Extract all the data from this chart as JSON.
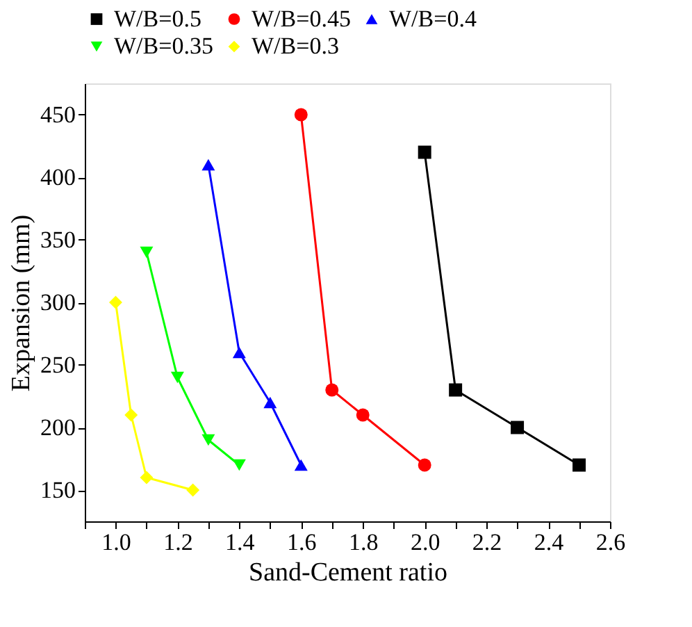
{
  "chart_data": {
    "type": "line",
    "xlabel": "Sand-Cement ratio",
    "ylabel": "Expansion (mm)",
    "xlim": [
      0.9,
      2.6
    ],
    "ylim": [
      125,
      475
    ],
    "xticks": [
      {
        "value": 0.9,
        "label": null
      },
      {
        "value": 1.0,
        "label": "1.0"
      },
      {
        "value": 1.1,
        "label": null
      },
      1.2,
      {
        "value": 1.3,
        "label": null
      },
      1.4,
      {
        "value": 1.5,
        "label": null
      },
      1.6,
      {
        "value": 1.7,
        "label": null
      },
      1.8,
      {
        "value": 1.9,
        "label": null
      },
      {
        "value": 2.0,
        "label": "2.0"
      },
      {
        "value": 2.1,
        "label": null
      },
      2.2,
      {
        "value": 2.3,
        "label": null
      },
      2.4,
      {
        "value": 2.5,
        "label": null
      },
      2.6
    ],
    "yticks": [
      150,
      200,
      250,
      300,
      350,
      400,
      450
    ],
    "grid": false,
    "legend": "top",
    "line_style": "solid",
    "series": [
      {
        "name": "W/B=0.5",
        "color": "#000000",
        "marker": "square",
        "x": [
          2.0,
          2.1,
          2.3,
          2.5
        ],
        "values": [
          420,
          230,
          200,
          170
        ]
      },
      {
        "name": "W/B=0.45",
        "color": "#ff0000",
        "marker": "circle",
        "x": [
          1.6,
          1.7,
          1.8,
          2.0
        ],
        "values": [
          450,
          230,
          210,
          170
        ]
      },
      {
        "name": "W/B=0.4",
        "color": "#0000ff",
        "marker": "triangle",
        "x": [
          1.3,
          1.4,
          1.5,
          1.6
        ],
        "values": [
          410,
          260,
          220,
          170
        ]
      },
      {
        "name": "W/B=0.35",
        "color": "#00ff00",
        "marker": "triangle-down",
        "x": [
          1.1,
          1.2,
          1.3,
          1.4
        ],
        "values": [
          340,
          240,
          190,
          170
        ]
      },
      {
        "name": "W/B=0.3",
        "color": "#ffff00",
        "marker": "diamond",
        "x": [
          1.0,
          1.05,
          1.1,
          1.25
        ],
        "values": [
          300,
          210,
          160,
          150
        ]
      }
    ]
  }
}
